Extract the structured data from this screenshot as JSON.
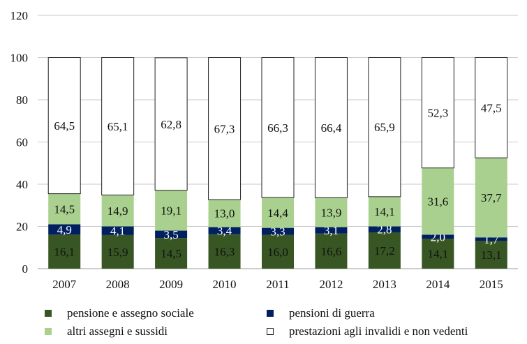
{
  "chart_data": {
    "type": "bar",
    "stacked": true,
    "title": "",
    "xlabel": "",
    "ylabel": "",
    "ylim": [
      0,
      120
    ],
    "yticks": [
      "0",
      "20",
      "40",
      "60",
      "80",
      "100",
      "120"
    ],
    "grid": true,
    "categories": [
      "2007",
      "2008",
      "2009",
      "2010",
      "2011",
      "2012",
      "2013",
      "2014",
      "2015"
    ],
    "series": [
      {
        "name": "pensione  e assegno sociale",
        "color": "#375623",
        "values": [
          16.1,
          15.9,
          14.5,
          16.3,
          16.0,
          16.6,
          17.2,
          14.1,
          13.1
        ],
        "labels": [
          "16,1",
          "15,9",
          "14,5",
          "16,3",
          "16,0",
          "16,6",
          "17,2",
          "14,1",
          "13,1"
        ]
      },
      {
        "name": "pensioni di guerra",
        "color": "#002060",
        "values": [
          4.9,
          4.1,
          3.5,
          3.4,
          3.3,
          3.1,
          2.8,
          2.0,
          1.7
        ],
        "labels": [
          "4,9",
          "4,1",
          "3,5",
          "3,4",
          "3,3",
          "3,1",
          "2,8",
          "2,0",
          "1,7"
        ]
      },
      {
        "name": "altri assegni e sussidi",
        "color": "#a9d08e",
        "values": [
          14.5,
          14.9,
          19.1,
          13.0,
          14.4,
          13.9,
          14.1,
          31.6,
          37.7
        ],
        "labels": [
          "14,5",
          "14,9",
          "19,1",
          "13,0",
          "14,4",
          "13,9",
          "14,1",
          "31,6",
          "37,7"
        ]
      },
      {
        "name": "prestazioni agli invalidi e non vedenti",
        "color": "#ffffff",
        "values": [
          64.5,
          65.1,
          62.8,
          67.3,
          66.3,
          66.4,
          65.9,
          52.3,
          47.5
        ],
        "labels": [
          "64,5",
          "65,1",
          "62,8",
          "67,3",
          "66,3",
          "66,4",
          "65,9",
          "52,3",
          "47,5"
        ]
      }
    ],
    "legend": "bottom"
  }
}
